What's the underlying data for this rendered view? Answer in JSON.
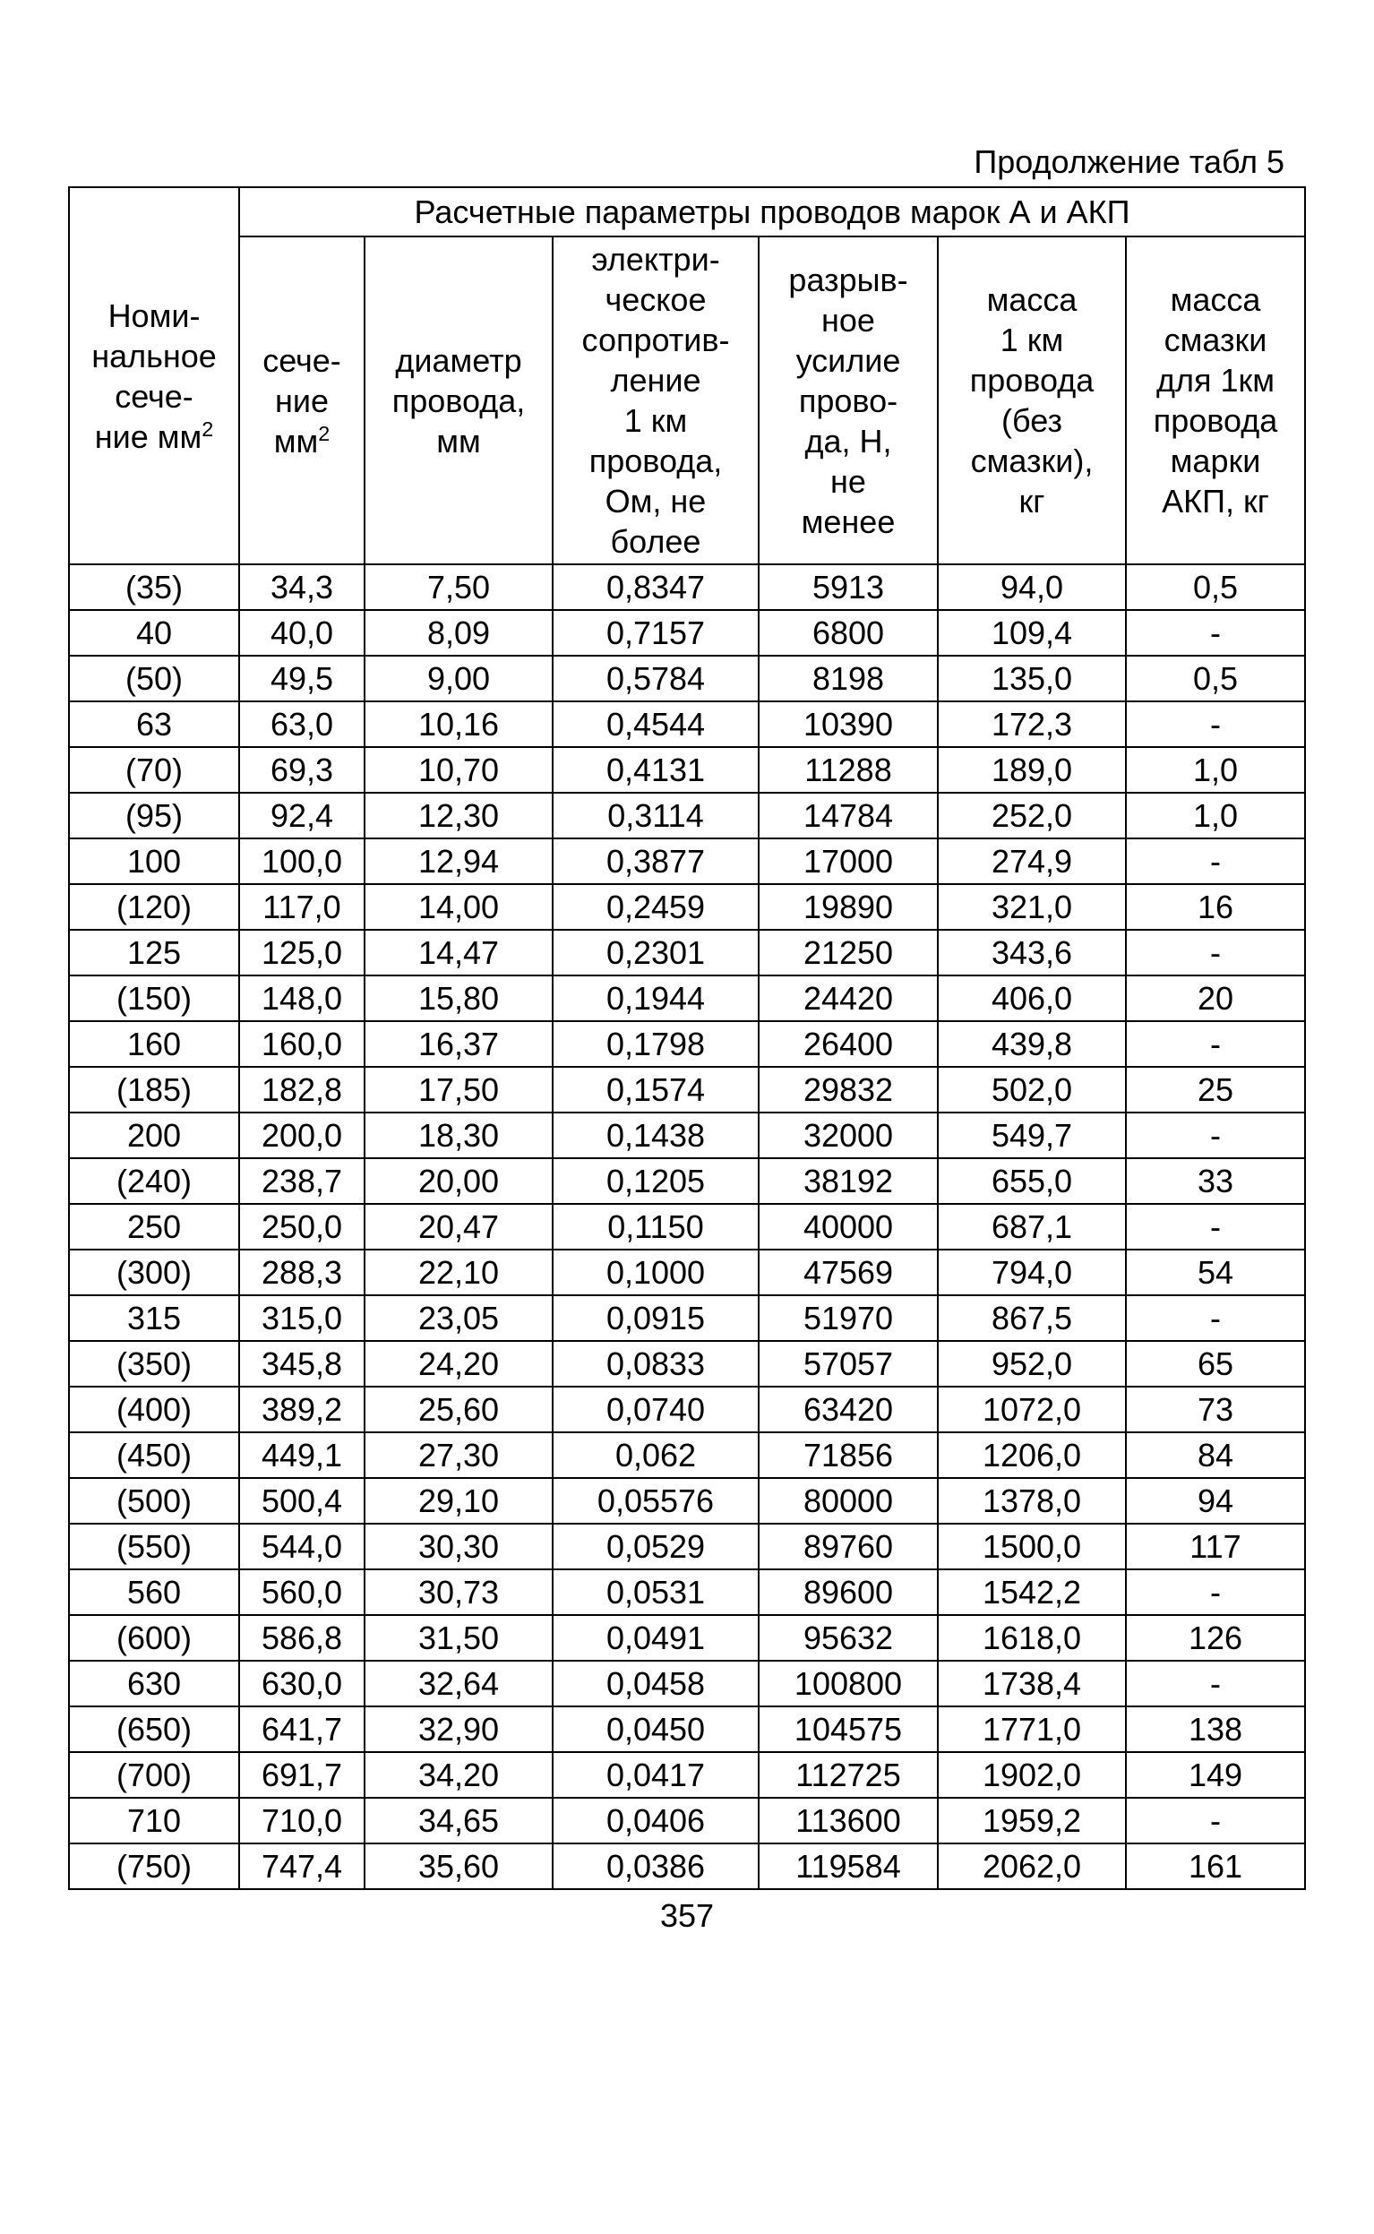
{
  "caption": "Продолжение табл 5",
  "spanning_header": "Расчетные параметры проводов марок А и АКП",
  "columns": [
    "Номи-\nнальное\nсече-\nние мм²",
    "сече-\nние\nмм²",
    "диаметр\nпровода,\nмм",
    "электри-\nческое\nсопротив-\nление\n1 км\nпровода,\nОм, не\nболее",
    "разрыв-\nное\nусилие\nпрово-\nда, Н,\nне\nменее",
    "масса\n1 км\nпровода\n(без\nсмазки),\nкг",
    "масса\nсмазки\nдля 1км\nпровода\nмарки\nАКП, кг"
  ],
  "rows": [
    [
      "(35)",
      "34,3",
      "7,50",
      "0,8347",
      "5913",
      "94,0",
      "0,5"
    ],
    [
      "40",
      "40,0",
      "8,09",
      "0,7157",
      "6800",
      "109,4",
      "-"
    ],
    [
      "(50)",
      "49,5",
      "9,00",
      "0,5784",
      "8198",
      "135,0",
      "0,5"
    ],
    [
      "63",
      "63,0",
      "10,16",
      "0,4544",
      "10390",
      "172,3",
      "-"
    ],
    [
      "(70)",
      "69,3",
      "10,70",
      "0,4131",
      "11288",
      "189,0",
      "1,0"
    ],
    [
      "(95)",
      "92,4",
      "12,30",
      "0,3114",
      "14784",
      "252,0",
      "1,0"
    ],
    [
      "100",
      "100,0",
      "12,94",
      "0,3877",
      "17000",
      "274,9",
      "-"
    ],
    [
      "(120)",
      "117,0",
      "14,00",
      "0,2459",
      "19890",
      "321,0",
      "16"
    ],
    [
      "125",
      "125,0",
      "14,47",
      "0,2301",
      "21250",
      "343,6",
      "-"
    ],
    [
      "(150)",
      "148,0",
      "15,80",
      "0,1944",
      "24420",
      "406,0",
      "20"
    ],
    [
      "160",
      "160,0",
      "16,37",
      "0,1798",
      "26400",
      "439,8",
      "-"
    ],
    [
      "(185)",
      "182,8",
      "17,50",
      "0,1574",
      "29832",
      "502,0",
      "25"
    ],
    [
      "200",
      "200,0",
      "18,30",
      "0,1438",
      "32000",
      "549,7",
      "-"
    ],
    [
      "(240)",
      "238,7",
      "20,00",
      "0,1205",
      "38192",
      "655,0",
      "33"
    ],
    [
      "250",
      "250,0",
      "20,47",
      "0,1150",
      "40000",
      "687,1",
      "-"
    ],
    [
      "(300)",
      "288,3",
      "22,10",
      "0,1000",
      "47569",
      "794,0",
      "54"
    ],
    [
      "315",
      "315,0",
      "23,05",
      "0,0915",
      "51970",
      "867,5",
      "-"
    ],
    [
      "(350)",
      "345,8",
      "24,20",
      "0,0833",
      "57057",
      "952,0",
      "65"
    ],
    [
      "(400)",
      "389,2",
      "25,60",
      "0,0740",
      "63420",
      "1072,0",
      "73"
    ],
    [
      "(450)",
      "449,1",
      "27,30",
      "0,062",
      "71856",
      "1206,0",
      "84"
    ],
    [
      "(500)",
      "500,4",
      "29,10",
      "0,05576",
      "80000",
      "1378,0",
      "94"
    ],
    [
      "(550)",
      "544,0",
      "30,30",
      "0,0529",
      "89760",
      "1500,0",
      "117"
    ],
    [
      "560",
      "560,0",
      "30,73",
      "0,0531",
      "89600",
      "1542,2",
      "-"
    ],
    [
      "(600)",
      "586,8",
      "31,50",
      "0,0491",
      "95632",
      "1618,0",
      "126"
    ],
    [
      "630",
      "630,0",
      "32,64",
      "0,0458",
      "100800",
      "1738,4",
      "-"
    ],
    [
      "(650)",
      "641,7",
      "32,90",
      "0,0450",
      "104575",
      "1771,0",
      "138"
    ],
    [
      "(700)",
      "691,7",
      "34,20",
      "0,0417",
      "112725",
      "1902,0",
      "149"
    ],
    [
      "710",
      "710,0",
      "34,65",
      "0,0406",
      "113600",
      "1959,2",
      "-"
    ],
    [
      "(750)",
      "747,4",
      "35,60",
      "0,0386",
      "119584",
      "2062,0",
      "161"
    ]
  ],
  "page_number": "357"
}
